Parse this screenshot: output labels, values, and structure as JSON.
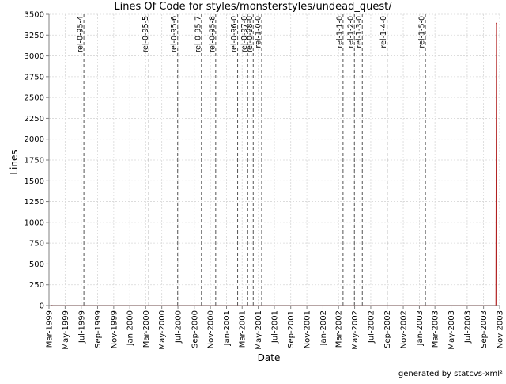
{
  "chart_data": {
    "type": "line",
    "title": "Lines Of Code for styles/monsterstyles/undead_quest/",
    "xlabel": "Date",
    "ylabel": "Lines",
    "x_axis": "date",
    "xlim": [
      "1999-03-01",
      "2003-11-01"
    ],
    "ylim": [
      0,
      3500
    ],
    "y_ticks": [
      0,
      250,
      500,
      750,
      1000,
      1250,
      1500,
      1750,
      2000,
      2250,
      2500,
      2750,
      3000,
      3250,
      3500
    ],
    "x_ticks": [
      {
        "date": "1999-03-01",
        "label": "Mar-1999"
      },
      {
        "date": "1999-05-01",
        "label": "May-1999"
      },
      {
        "date": "1999-07-01",
        "label": "Jul-1999"
      },
      {
        "date": "1999-09-01",
        "label": "Sep-1999"
      },
      {
        "date": "1999-11-01",
        "label": "Nov-1999"
      },
      {
        "date": "2000-01-01",
        "label": "Jan-2000"
      },
      {
        "date": "2000-03-01",
        "label": "Mar-2000"
      },
      {
        "date": "2000-05-01",
        "label": "May-2000"
      },
      {
        "date": "2000-07-01",
        "label": "Jul-2000"
      },
      {
        "date": "2000-09-01",
        "label": "Sep-2000"
      },
      {
        "date": "2000-11-01",
        "label": "Nov-2000"
      },
      {
        "date": "2001-01-01",
        "label": "Jan-2001"
      },
      {
        "date": "2001-03-01",
        "label": "Mar-2001"
      },
      {
        "date": "2001-05-01",
        "label": "May-2001"
      },
      {
        "date": "2001-07-01",
        "label": "Jul-2001"
      },
      {
        "date": "2001-09-01",
        "label": "Sep-2001"
      },
      {
        "date": "2001-11-01",
        "label": "Nov-2001"
      },
      {
        "date": "2002-01-01",
        "label": "Jan-2002"
      },
      {
        "date": "2002-03-01",
        "label": "Mar-2002"
      },
      {
        "date": "2002-05-01",
        "label": "May-2002"
      },
      {
        "date": "2002-07-01",
        "label": "Jul-2002"
      },
      {
        "date": "2002-09-01",
        "label": "Sep-2002"
      },
      {
        "date": "2002-11-01",
        "label": "Nov-2002"
      },
      {
        "date": "2003-01-01",
        "label": "Jan-2003"
      },
      {
        "date": "2003-03-01",
        "label": "Mar-2003"
      },
      {
        "date": "2003-05-01",
        "label": "May-2003"
      },
      {
        "date": "2003-07-01",
        "label": "Jul-2003"
      },
      {
        "date": "2003-09-01",
        "label": "Sep-2003"
      },
      {
        "date": "2003-11-01",
        "label": "Nov-2003"
      }
    ],
    "series": [
      {
        "color": "#b22222",
        "points": [
          {
            "x": "1999-03-12",
            "y": 0
          },
          {
            "x": "2003-10-18",
            "y": 0
          },
          {
            "x": "2003-10-20",
            "y": 3390
          }
        ]
      }
    ],
    "markers": [
      {
        "date": "1999-07-11",
        "label": "rel-0-95-4"
      },
      {
        "date": "2000-03-13",
        "label": "rel-0-95-5"
      },
      {
        "date": "2000-06-30",
        "label": "rel-0-95-6"
      },
      {
        "date": "2000-09-28",
        "label": "rel-0-95-7"
      },
      {
        "date": "2000-11-21",
        "label": "rel-0-95-8"
      },
      {
        "date": "2001-02-12",
        "label": "rel-0-96-0"
      },
      {
        "date": "2001-03-22",
        "label": "rel-0-97-0"
      },
      {
        "date": "2001-04-12",
        "label": "rel-0-98-0"
      },
      {
        "date": "2001-05-14",
        "label": "rel-1-0-0"
      },
      {
        "date": "2002-03-18",
        "label": "rel-1-1-0"
      },
      {
        "date": "2002-04-30",
        "label": "rel-1-2-0"
      },
      {
        "date": "2002-05-30",
        "label": "rel-1-3-0"
      },
      {
        "date": "2002-09-01",
        "label": "rel-1-4-0"
      },
      {
        "date": "2003-01-24",
        "label": "rel-1-5-0"
      }
    ],
    "grid": true,
    "legend": "none",
    "colors": {
      "axis": "#808080",
      "grid": "#d8d8d8",
      "marker": "#555555",
      "line": "#b22222"
    }
  },
  "footer": {
    "credit": "generated by statcvs-xml²"
  }
}
